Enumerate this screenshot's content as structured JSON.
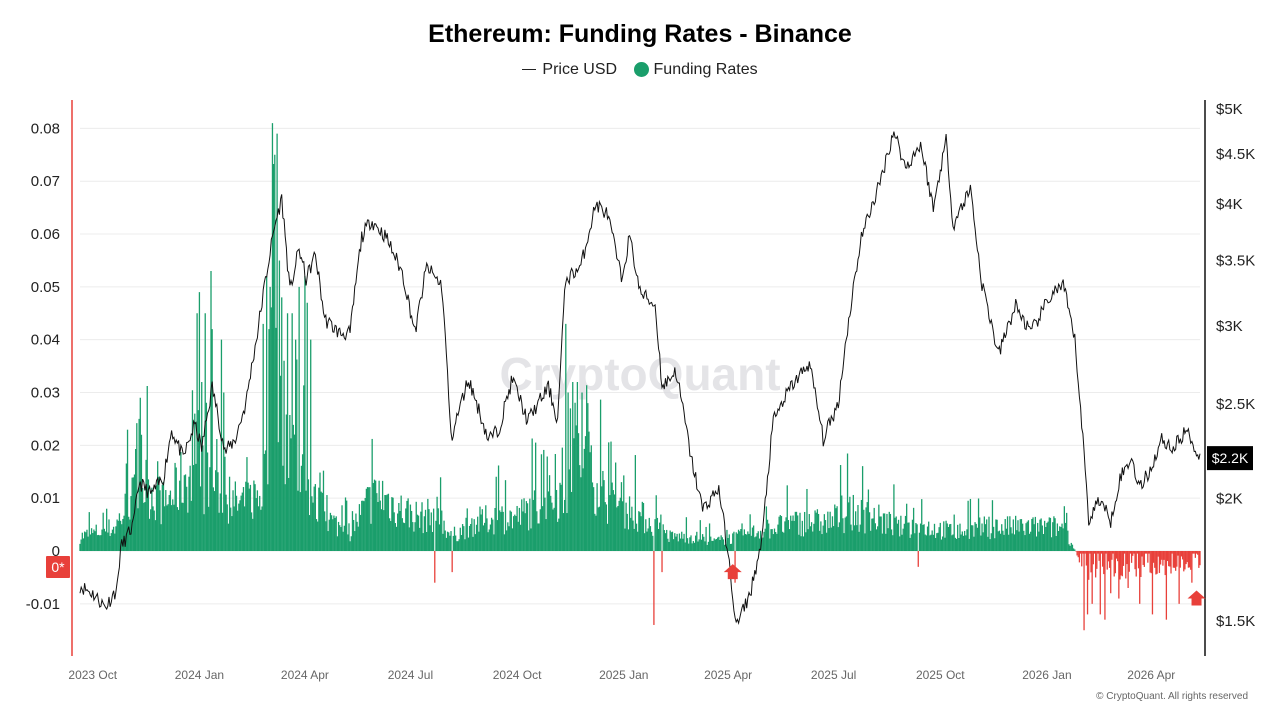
{
  "title": "Ethereum: Funding Rates - Binance",
  "legend": {
    "price_label": "Price USD",
    "funding_label": "Funding Rates"
  },
  "colors": {
    "positive": "#1a9e6b",
    "negative": "#e8403a",
    "price_line": "#111111",
    "current_badge": "#000000",
    "marker": "#e8403a"
  },
  "watermark": "CryptoQuant",
  "copyright": "© CryptoQuant. All rights reserved",
  "zero_marker_label": "0*",
  "chart_data": {
    "type": "bar+line",
    "x_range": [
      "2023-09-20",
      "2026-05-13"
    ],
    "x_ticks": [
      {
        "date": "2023-10-01",
        "label": "2023 Oct"
      },
      {
        "date": "2024-01-01",
        "label": "2024 Jan"
      },
      {
        "date": "2024-04-01",
        "label": "2024 Apr"
      },
      {
        "date": "2024-07-01",
        "label": "2024 Jul"
      },
      {
        "date": "2024-10-01",
        "label": "2024 Oct"
      },
      {
        "date": "2025-01-01",
        "label": "2025 Jan"
      },
      {
        "date": "2025-04-01",
        "label": "2025 Apr"
      },
      {
        "date": "2025-07-01",
        "label": "2025 Jul"
      },
      {
        "date": "2025-10-01",
        "label": "2025 Oct"
      },
      {
        "date": "2026-01-01",
        "label": "2026 Jan"
      },
      {
        "date": "2026-04-01",
        "label": "2026 Apr"
      }
    ],
    "left_axis": {
      "ticks": [
        -0.01,
        0,
        0.01,
        0.02,
        0.03,
        0.04,
        0.05,
        0.06,
        0.07,
        0.08
      ],
      "labels": [
        "-0.01",
        "0",
        "0.01",
        "0.02",
        "0.03",
        "0.04",
        "0.05",
        "0.06",
        "0.07",
        "0.08"
      ]
    },
    "right_axis": {
      "scale": "log",
      "ticks": [
        1500,
        2000,
        2500,
        3000,
        3500,
        4000,
        4500,
        5000
      ],
      "labels": [
        "$1.5K",
        "$2K",
        "$2.5K",
        "$3K",
        "$3.5K",
        "$4K",
        "$4.5K",
        "$5K"
      ]
    },
    "current_price_label": "$2.2K",
    "funding_series_name": "Funding Rates",
    "funding_keypoints": [
      [
        "2023-09-20",
        0.003
      ],
      [
        "2023-10-20",
        0.005
      ],
      [
        "2023-11-01",
        0.01
      ],
      [
        "2023-11-15",
        0.014
      ],
      [
        "2023-12-01",
        0.01
      ],
      [
        "2023-12-10",
        0.012
      ],
      [
        "2023-12-20",
        0.016
      ],
      [
        "2024-01-01",
        0.012
      ],
      [
        "2024-01-10",
        0.015
      ],
      [
        "2024-01-25",
        0.01
      ],
      [
        "2024-02-10",
        0.01
      ],
      [
        "2024-02-25",
        0.013
      ],
      [
        "2024-03-05",
        0.035
      ],
      [
        "2024-03-12",
        0.03
      ],
      [
        "2024-03-25",
        0.018
      ],
      [
        "2024-04-10",
        0.01
      ],
      [
        "2024-04-25",
        0.006
      ],
      [
        "2024-05-10",
        0.004
      ],
      [
        "2024-05-25",
        0.01
      ],
      [
        "2024-06-05",
        0.012
      ],
      [
        "2024-06-20",
        0.009
      ],
      [
        "2024-07-10",
        0.007
      ],
      [
        "2024-07-25",
        0.008
      ],
      [
        "2024-08-05",
        0.003
      ],
      [
        "2024-08-25",
        0.006
      ],
      [
        "2024-09-15",
        0.007
      ],
      [
        "2024-10-01",
        0.007
      ],
      [
        "2024-10-20",
        0.01
      ],
      [
        "2024-11-10",
        0.012
      ],
      [
        "2024-11-20",
        0.022
      ],
      [
        "2024-12-05",
        0.016
      ],
      [
        "2024-12-20",
        0.01
      ],
      [
        "2025-01-10",
        0.008
      ],
      [
        "2025-01-25",
        0.006
      ],
      [
        "2025-02-10",
        0.003
      ],
      [
        "2025-03-01",
        0.003
      ],
      [
        "2025-03-20",
        0.002
      ],
      [
        "2025-04-10",
        0.003
      ],
      [
        "2025-05-10",
        0.005
      ],
      [
        "2025-06-01",
        0.006
      ],
      [
        "2025-06-25",
        0.006
      ],
      [
        "2025-07-15",
        0.008
      ],
      [
        "2025-08-05",
        0.007
      ],
      [
        "2025-08-25",
        0.005
      ],
      [
        "2025-09-20",
        0.005
      ],
      [
        "2025-10-15",
        0.004
      ],
      [
        "2025-11-10",
        0.005
      ],
      [
        "2025-12-10",
        0.005
      ],
      [
        "2026-01-15",
        0.005
      ],
      [
        "2026-02-01",
        -0.003
      ],
      [
        "2026-02-20",
        -0.004
      ],
      [
        "2026-03-15",
        -0.003
      ],
      [
        "2026-04-10",
        -0.003
      ],
      [
        "2026-05-13",
        -0.002
      ]
    ],
    "funding_spikes": [
      [
        "2023-11-10",
        0.025
      ],
      [
        "2023-11-11",
        0.029
      ],
      [
        "2023-11-12",
        0.022
      ],
      [
        "2023-12-28",
        0.026
      ],
      [
        "2023-12-30",
        0.045
      ],
      [
        "2024-01-01",
        0.049
      ],
      [
        "2024-01-03",
        0.032
      ],
      [
        "2024-01-06",
        0.045
      ],
      [
        "2024-01-11",
        0.053
      ],
      [
        "2024-01-12",
        0.042
      ],
      [
        "2024-01-20",
        0.04
      ],
      [
        "2024-01-22",
        0.03
      ],
      [
        "2024-03-04",
        0.081
      ],
      [
        "2024-03-06",
        0.075
      ],
      [
        "2024-03-08",
        0.079
      ],
      [
        "2024-03-02",
        0.05
      ],
      [
        "2024-03-10",
        0.055
      ],
      [
        "2024-02-28",
        0.052
      ],
      [
        "2024-03-12",
        0.048
      ],
      [
        "2024-03-17",
        0.045
      ],
      [
        "2024-03-21",
        0.045
      ],
      [
        "2024-03-27",
        0.05
      ],
      [
        "2024-04-01",
        0.052
      ],
      [
        "2024-04-03",
        0.047
      ],
      [
        "2024-02-25",
        0.043
      ],
      [
        "2024-03-14",
        0.036
      ],
      [
        "2024-03-24",
        0.04
      ],
      [
        "2024-04-06",
        0.04
      ],
      [
        "2024-03-01",
        0.042
      ],
      [
        "2024-11-12",
        0.043
      ],
      [
        "2024-11-14",
        0.03
      ],
      [
        "2024-11-18",
        0.032
      ],
      [
        "2024-11-22",
        0.032
      ],
      [
        "2024-11-26",
        0.03
      ],
      [
        "2024-12-01",
        0.028
      ],
      [
        "2024-11-16",
        0.027
      ],
      [
        "2024-12-04",
        0.02
      ],
      [
        "2025-05-14",
        0.005
      ],
      [
        "2025-06-10",
        0.007
      ]
    ],
    "funding_neg_spikes": [
      [
        "2024-07-22",
        -0.006
      ],
      [
        "2024-08-06",
        -0.004
      ],
      [
        "2025-01-27",
        -0.014
      ],
      [
        "2025-02-03",
        -0.004
      ],
      [
        "2025-04-07",
        -0.006
      ],
      [
        "2025-09-12",
        -0.003
      ],
      [
        "2026-02-02",
        -0.015
      ],
      [
        "2026-02-05",
        -0.012
      ],
      [
        "2026-02-09",
        -0.01
      ],
      [
        "2026-02-16",
        -0.012
      ],
      [
        "2026-02-20",
        -0.013
      ],
      [
        "2026-02-25",
        -0.008
      ],
      [
        "2026-03-04",
        -0.009
      ],
      [
        "2026-03-12",
        -0.007
      ],
      [
        "2026-03-22",
        -0.01
      ],
      [
        "2026-04-02",
        -0.012
      ],
      [
        "2026-04-14",
        -0.013
      ],
      [
        "2026-04-25",
        -0.01
      ],
      [
        "2026-05-06",
        -0.006
      ]
    ],
    "price_series_name": "Price USD",
    "price_keypoints": [
      [
        "2023-09-20",
        1630
      ],
      [
        "2023-10-01",
        1600
      ],
      [
        "2023-10-12",
        1550
      ],
      [
        "2023-10-22",
        1620
      ],
      [
        "2023-10-25",
        1780
      ],
      [
        "2023-11-05",
        1880
      ],
      [
        "2023-11-10",
        2080
      ],
      [
        "2023-11-20",
        2020
      ],
      [
        "2023-12-01",
        2100
      ],
      [
        "2023-12-08",
        2350
      ],
      [
        "2023-12-18",
        2200
      ],
      [
        "2023-12-28",
        2380
      ],
      [
        "2024-01-03",
        2250
      ],
      [
        "2024-01-12",
        2600
      ],
      [
        "2024-01-23",
        2230
      ],
      [
        "2024-02-01",
        2300
      ],
      [
        "2024-02-10",
        2500
      ],
      [
        "2024-02-20",
        2950
      ],
      [
        "2024-02-28",
        3400
      ],
      [
        "2024-03-06",
        3800
      ],
      [
        "2024-03-12",
        4050
      ],
      [
        "2024-03-19",
        3250
      ],
      [
        "2024-03-27",
        3600
      ],
      [
        "2024-04-02",
        3350
      ],
      [
        "2024-04-10",
        3550
      ],
      [
        "2024-04-18",
        3050
      ],
      [
        "2024-05-01",
        2950
      ],
      [
        "2024-05-10",
        2950
      ],
      [
        "2024-05-20",
        3700
      ],
      [
        "2024-05-28",
        3850
      ],
      [
        "2024-06-10",
        3700
      ],
      [
        "2024-06-24",
        3400
      ],
      [
        "2024-07-05",
        2950
      ],
      [
        "2024-07-15",
        3450
      ],
      [
        "2024-07-28",
        3300
      ],
      [
        "2024-08-05",
        2300
      ],
      [
        "2024-08-20",
        2650
      ],
      [
        "2024-09-06",
        2300
      ],
      [
        "2024-09-15",
        2350
      ],
      [
        "2024-09-27",
        2650
      ],
      [
        "2024-10-10",
        2400
      ],
      [
        "2024-10-28",
        2600
      ],
      [
        "2024-11-05",
        2400
      ],
      [
        "2024-11-12",
        3350
      ],
      [
        "2024-11-25",
        3450
      ],
      [
        "2024-12-08",
        4000
      ],
      [
        "2024-12-18",
        3900
      ],
      [
        "2024-12-30",
        3350
      ],
      [
        "2025-01-06",
        3700
      ],
      [
        "2025-01-15",
        3250
      ],
      [
        "2025-01-28",
        3150
      ],
      [
        "2025-02-03",
        2600
      ],
      [
        "2025-02-15",
        2700
      ],
      [
        "2025-02-28",
        2200
      ],
      [
        "2025-03-10",
        1950
      ],
      [
        "2025-03-24",
        2050
      ],
      [
        "2025-04-08",
        1480
      ],
      [
        "2025-04-20",
        1600
      ],
      [
        "2025-04-30",
        1800
      ],
      [
        "2025-05-10",
        2400
      ],
      [
        "2025-05-25",
        2600
      ],
      [
        "2025-06-10",
        2750
      ],
      [
        "2025-06-22",
        2300
      ],
      [
        "2025-07-05",
        2500
      ],
      [
        "2025-07-15",
        3100
      ],
      [
        "2025-07-25",
        3700
      ],
      [
        "2025-08-10",
        4200
      ],
      [
        "2025-08-22",
        4750
      ],
      [
        "2025-09-01",
        4350
      ],
      [
        "2025-09-14",
        4600
      ],
      [
        "2025-09-25",
        3950
      ],
      [
        "2025-10-06",
        4650
      ],
      [
        "2025-10-12",
        3800
      ],
      [
        "2025-10-27",
        4150
      ],
      [
        "2025-11-05",
        3350
      ],
      [
        "2025-11-20",
        2800
      ],
      [
        "2025-12-05",
        3150
      ],
      [
        "2025-12-18",
        2950
      ],
      [
        "2026-01-06",
        3250
      ],
      [
        "2026-01-15",
        3300
      ],
      [
        "2026-01-25",
        2900
      ],
      [
        "2026-02-01",
        2300
      ],
      [
        "2026-02-06",
        1900
      ],
      [
        "2026-02-15",
        2000
      ],
      [
        "2026-02-25",
        1900
      ],
      [
        "2026-03-05",
        2100
      ],
      [
        "2026-03-15",
        2200
      ],
      [
        "2026-03-22",
        2050
      ],
      [
        "2026-04-01",
        2150
      ],
      [
        "2026-04-10",
        2300
      ],
      [
        "2026-04-20",
        2250
      ],
      [
        "2026-05-01",
        2350
      ],
      [
        "2026-05-13",
        2200
      ]
    ],
    "markers": [
      {
        "date": "2025-04-05",
        "value": -0.004
      },
      {
        "date": "2026-05-10",
        "value": -0.009
      }
    ]
  }
}
